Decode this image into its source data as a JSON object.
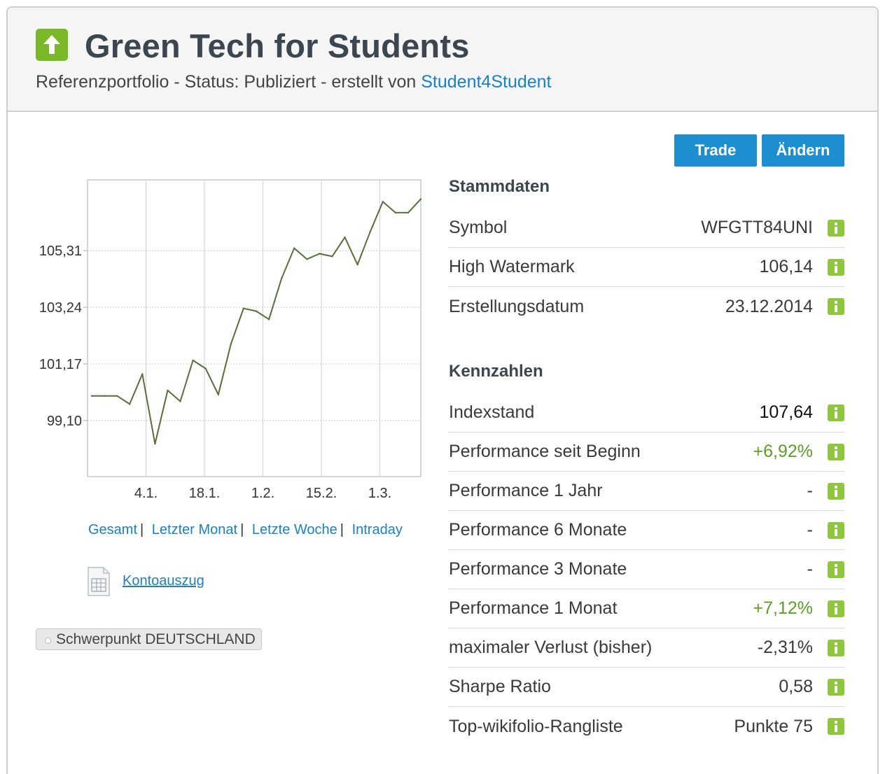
{
  "header": {
    "title": "Green Tech for Students",
    "subtitle_prefix": "Referenzportfolio - Status: Publiziert - erstellt von ",
    "author_link": "Student4Student"
  },
  "actions": {
    "trade_label": "Trade",
    "change_label": "Ändern"
  },
  "chart_data": {
    "type": "line",
    "title": "",
    "xlabel": "",
    "ylabel": "",
    "x_ticks": [
      "4.1.",
      "18.1.",
      "1.2.",
      "15.2.",
      "1.3."
    ],
    "y_ticks": [
      "99,10",
      "101,17",
      "103,24",
      "105,31"
    ],
    "y_tick_values": [
      99.1,
      101.17,
      103.24,
      105.31
    ],
    "ylim": [
      97.05,
      107.9
    ],
    "grid": true,
    "series": [
      {
        "line_color": "#5a6e3a",
        "values": [
          100.0,
          100.0,
          100.0,
          99.7,
          100.8,
          98.25,
          100.2,
          99.8,
          101.3,
          101.0,
          100.05,
          101.9,
          103.2,
          103.1,
          102.8,
          104.3,
          105.4,
          105.0,
          105.2,
          105.1,
          105.8,
          104.8,
          106.0,
          107.1,
          106.7,
          106.7,
          107.2
        ]
      }
    ]
  },
  "range_links": [
    "Gesamt",
    "Letzter Monat",
    "Letzte Woche",
    "Intraday"
  ],
  "range_sep": "|",
  "konto_label": "Kontoauszug",
  "tag_label": "Schwerpunkt DEUTSCHLAND",
  "stammdaten": {
    "title": "Stammdaten",
    "rows": [
      {
        "label": "Symbol",
        "value": "WFGTT84UNI"
      },
      {
        "label": "High Watermark",
        "value": "106,14"
      },
      {
        "label": "Erstellungsdatum",
        "value": "23.12.2014"
      }
    ]
  },
  "kennzahlen": {
    "title": "Kennzahlen",
    "rows": [
      {
        "label": "Indexstand",
        "value": "107,64"
      },
      {
        "label": "Performance seit Beginn",
        "value": "+6,92%"
      },
      {
        "label": "Performance 1 Jahr",
        "value": "-"
      },
      {
        "label": "Performance 6 Monate",
        "value": "-"
      },
      {
        "label": "Performance 3 Monate",
        "value": "-"
      },
      {
        "label": "Performance 1 Monat",
        "value": "+7,12%"
      },
      {
        "label": "maximaler Verlust (bisher)",
        "value": "-2,31%"
      },
      {
        "label": "Sharpe Ratio",
        "value": "0,58"
      },
      {
        "label": "Top-wikifolio-Rangliste",
        "value": "Punkte 75"
      }
    ]
  },
  "colors": {
    "accent": "#1d8fd0",
    "positive": "#5c9e28",
    "info_icon": "#8ec63f",
    "logo": "#7ab829"
  }
}
